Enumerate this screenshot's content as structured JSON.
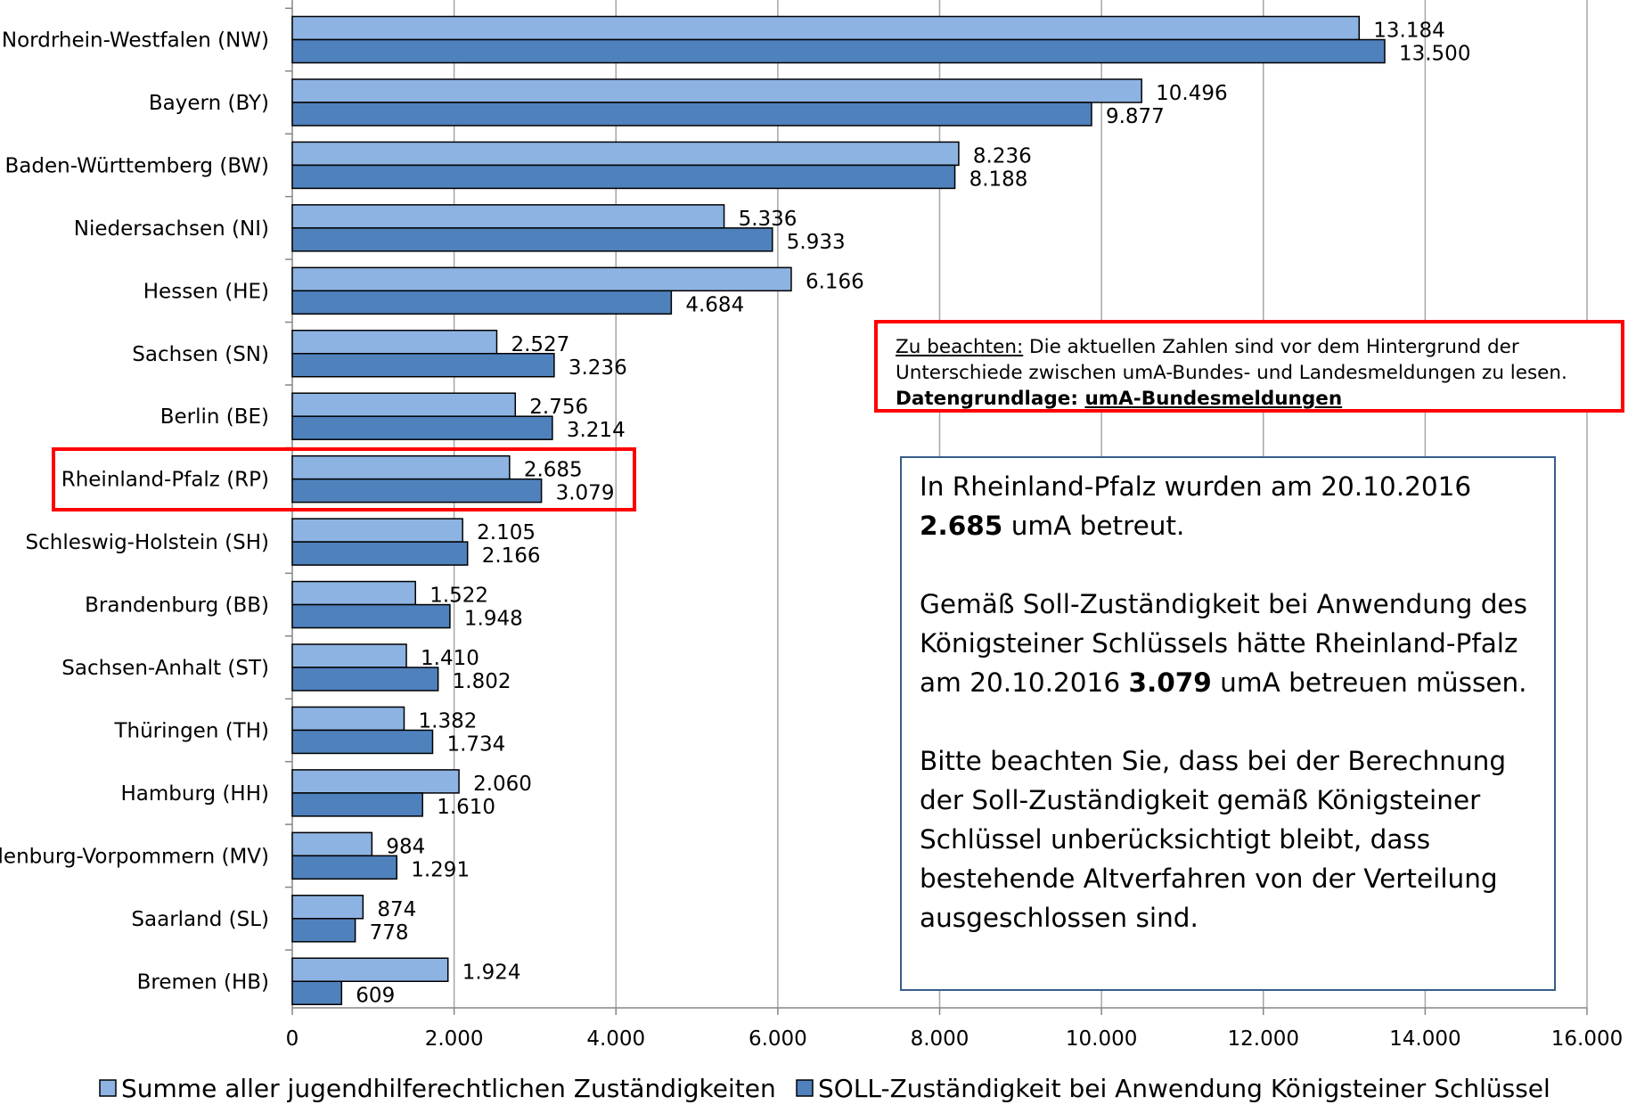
{
  "chart_data": {
    "type": "bar",
    "orientation": "horizontal",
    "categories": [
      "Nordrhein-Westfalen (NW)",
      "Bayern (BY)",
      "Baden-Württemberg (BW)",
      "Niedersachsen (NI)",
      "Hessen (HE)",
      "Sachsen (SN)",
      "Berlin (BE)",
      "Rheinland-Pfalz (RP)",
      "Schleswig-Holstein (SH)",
      "Brandenburg (BB)",
      "Sachsen-Anhalt (ST)",
      "Thüringen (TH)",
      "Hamburg (HH)",
      "Mecklenburg-Vorpommern (MV)",
      "Saarland (SL)",
      "Bremen (HB)"
    ],
    "series": [
      {
        "name": "Summe aller jugendhilferechtlichen Zuständigkeiten",
        "color": "#8db3e2",
        "values": [
          13184,
          10496,
          8236,
          5336,
          6166,
          2527,
          2756,
          2685,
          2105,
          1522,
          1410,
          1382,
          2060,
          984,
          874,
          1924
        ],
        "labels": [
          "13.184",
          "10.496",
          "8.236",
          "5.336",
          "6.166",
          "2.527",
          "2.756",
          "2.685",
          "2.105",
          "1.522",
          "1.410",
          "1.382",
          "2.060",
          "984",
          "874",
          "1.924"
        ]
      },
      {
        "name": "SOLL-Zuständigkeit bei Anwendung Königsteiner Schlüssel",
        "color": "#4f81bd",
        "values": [
          13500,
          9877,
          8188,
          5933,
          4684,
          3236,
          3214,
          3079,
          2166,
          1948,
          1802,
          1734,
          1610,
          1291,
          778,
          609
        ],
        "labels": [
          "13.500",
          "9.877",
          "8.188",
          "5.933",
          "4.684",
          "3.236",
          "3.214",
          "3.079",
          "2.166",
          "1.948",
          "1.802",
          "1.734",
          "1.610",
          "1.291",
          "778",
          "609"
        ]
      }
    ],
    "xlim": [
      0,
      16000
    ],
    "xticks": [
      0,
      2000,
      4000,
      6000,
      8000,
      10000,
      12000,
      14000,
      16000
    ],
    "xtick_labels": [
      "0",
      "2.000",
      "4.000",
      "6.000",
      "8.000",
      "10.000",
      "12.000",
      "14.000",
      "16.000"
    ],
    "grid": true,
    "legend_position": "bottom",
    "highlighted_category": "Rheinland-Pfalz (RP)",
    "highlight_color": "#ff0000"
  },
  "note": {
    "line1_prefix": "Zu beachten:",
    "line1_rest": " Die aktuellen Zahlen sind vor dem Hintergrund der",
    "line2": "Unterschiede zwischen umA-Bundes- und Landesmeldungen zu lesen.",
    "line3_bold": "Datengrundlage: ",
    "line3_bold_underline": "umA-Bundesmeldungen"
  },
  "info": {
    "p1_a": "In Rheinland-Pfalz wurden am 20.10.2016",
    "p1_bold": "2.685",
    "p1_b": " umA betreut.",
    "p2_a": "Gemäß Soll-Zuständigkeit bei Anwendung des Königsteiner Schlüssels hätte Rheinland-Pfalz am 20.10.2016 ",
    "p2_bold": "3.079",
    "p2_b": " umA betreuen müssen.",
    "p3": "Bitte beachten Sie, dass bei der Berechnung der Soll-Zuständigkeit gemäß Königsteiner Schlüssel unberücksichtigt bleibt, dass bestehende Altverfahren von der Verteilung ausgeschlossen sind."
  }
}
